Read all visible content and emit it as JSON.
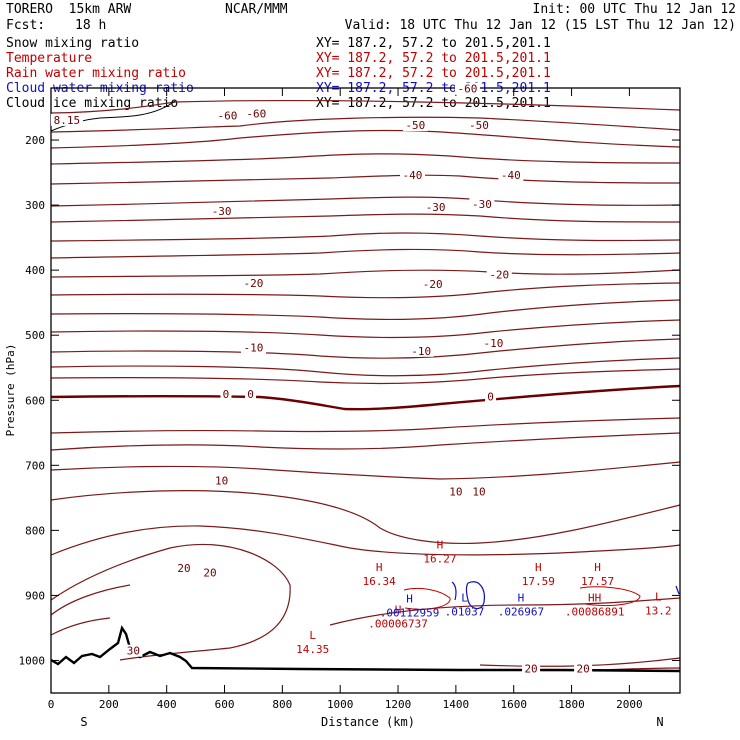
{
  "header": {
    "model": "TORERO  15km ARW",
    "center": "NCAR/MMM",
    "init": "Init: 00 UTC Thu 12 Jan 12",
    "fcst_label": "Fcst:",
    "fcst_value": "18 h",
    "valid": "Valid: 18 UTC Thu 12 Jan 12 (15 LST Thu 12 Jan 12)"
  },
  "legend": [
    {
      "label": "Snow mixing ratio",
      "xy": "XY= 187.2, 57.2 to 201.5,201.1",
      "color": "#000000"
    },
    {
      "label": "Temperature",
      "xy": "XY= 187.2, 57.2 to 201.5,201.1",
      "color": "#c00000"
    },
    {
      "label": "Rain water mixing ratio",
      "xy": "XY= 187.2, 57.2 to 201.5,201.1",
      "color": "#c00000"
    },
    {
      "label": "Cloud water mixing ratio",
      "xy": "XY= 187.2, 57.2 to 201.5,201.1",
      "color": "#1010c0"
    },
    {
      "label": "Cloud ice mixing ratio",
      "xy": "XY= 187.2, 57.2 to 201.5,201.1",
      "color": "#000000"
    }
  ],
  "chart_data": {
    "type": "cross-section contour",
    "xlabel": "Distance (km)",
    "ylabel": "Pressure (hPa)",
    "xlim": [
      0,
      2175
    ],
    "ylim": [
      1050,
      120
    ],
    "x_ticks": [
      0,
      200,
      400,
      600,
      800,
      1000,
      1200,
      1400,
      1600,
      1800,
      2000
    ],
    "y_ticks": [
      200,
      300,
      400,
      500,
      600,
      700,
      800,
      900,
      1000
    ],
    "end_labels": {
      "left": "S",
      "right": "N"
    },
    "contour_labels": [
      {
        "text": "-60",
        "x": 610,
        "p": 162
      },
      {
        "text": "-60",
        "x": 710,
        "p": 159
      },
      {
        "text": "-60",
        "x": 1440,
        "p": 121
      },
      {
        "text": "-50",
        "x": 1260,
        "p": 177
      },
      {
        "text": "-50",
        "x": 1480,
        "p": 177
      },
      {
        "text": "-40",
        "x": 1250,
        "p": 254
      },
      {
        "text": "-40",
        "x": 1590,
        "p": 254
      },
      {
        "text": "-30",
        "x": 590,
        "p": 309
      },
      {
        "text": "-30",
        "x": 1330,
        "p": 303
      },
      {
        "text": "-30",
        "x": 1490,
        "p": 298
      },
      {
        "text": "-20",
        "x": 700,
        "p": 420
      },
      {
        "text": "-20",
        "x": 1320,
        "p": 421
      },
      {
        "text": "-20",
        "x": 1550,
        "p": 407
      },
      {
        "text": "-10",
        "x": 700,
        "p": 519
      },
      {
        "text": "-10",
        "x": 1280,
        "p": 524
      },
      {
        "text": "-10",
        "x": 1530,
        "p": 512
      },
      {
        "text": "0",
        "x": 605,
        "p": 590
      },
      {
        "text": "0",
        "x": 690,
        "p": 590
      },
      {
        "text": "0",
        "x": 1520,
        "p": 594
      },
      {
        "text": "10",
        "x": 590,
        "p": 723
      },
      {
        "text": "10",
        "x": 1400,
        "p": 740
      },
      {
        "text": "10",
        "x": 1480,
        "p": 740
      },
      {
        "text": "20",
        "x": 460,
        "p": 858
      },
      {
        "text": "20",
        "x": 550,
        "p": 865
      },
      {
        "text": "20",
        "x": 1660,
        "p": 1012
      },
      {
        "text": "20",
        "x": 1840,
        "p": 1012
      },
      {
        "text": "30",
        "x": 285,
        "p": 985
      },
      {
        "text": "8.15",
        "x": 55,
        "p": 169
      }
    ],
    "extrema": [
      {
        "mark": "H",
        "value": "16.34",
        "x": 1135,
        "p": 875,
        "color": "#c00000"
      },
      {
        "mark": "H",
        "value": "16.27",
        "x": 1345,
        "p": 840,
        "color": "#c00000"
      },
      {
        "mark": "H",
        "value": "17.59",
        "x": 1685,
        "p": 875,
        "color": "#c00000"
      },
      {
        "mark": "H",
        "value": "17.57",
        "x": 1890,
        "p": 875,
        "color": "#c00000"
      },
      {
        "mark": "L",
        "value": "13.2",
        "x": 2100,
        "p": 920,
        "color": "#c00000"
      },
      {
        "mark": "L",
        "value": "14.35",
        "x": 905,
        "p": 979,
        "color": "#c00000"
      },
      {
        "mark": "H",
        "value": ".00006737",
        "x": 1200,
        "p": 940,
        "color": "#c00000"
      },
      {
        "mark": "HH",
        "value": ".00086891",
        "x": 1880,
        "p": 922,
        "color": "#c00000"
      },
      {
        "mark": "H",
        "value": ".00112959",
        "x": 1240,
        "p": 923,
        "color": "#1010c0"
      },
      {
        "mark": "L",
        "value": ".01037",
        "x": 1430,
        "p": 922,
        "color": "#1010c0"
      },
      {
        "mark": "H",
        "value": ".026967",
        "x": 1625,
        "p": 922,
        "color": "#1010c0"
      }
    ]
  }
}
